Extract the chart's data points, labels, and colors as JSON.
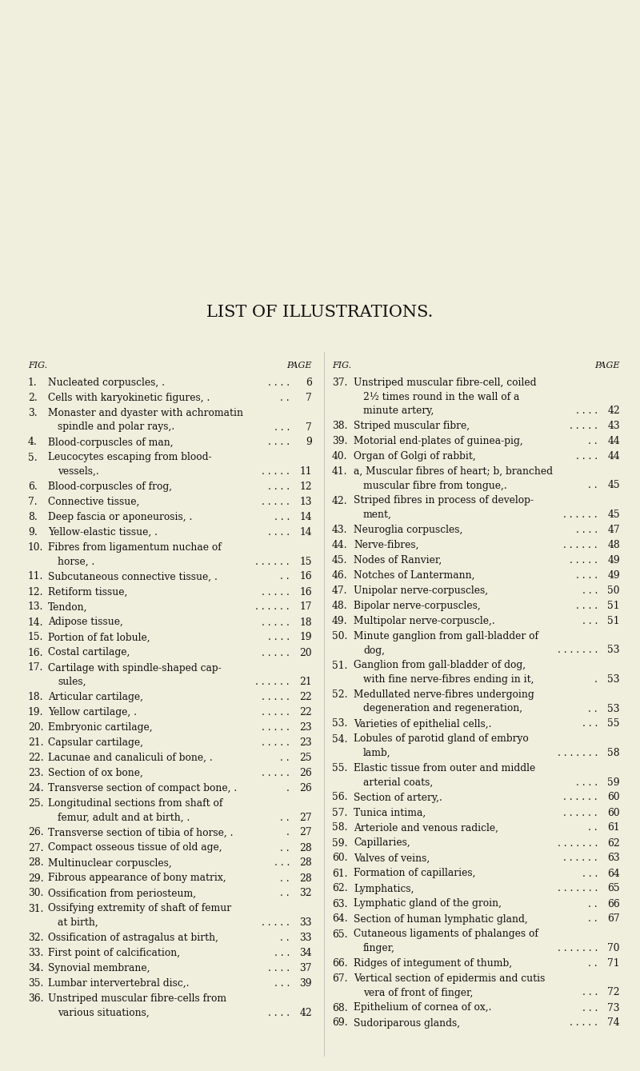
{
  "background_color": "#f0eedc",
  "title": "LIST OF ILLUSTRATIONS.",
  "title_fontsize": 15,
  "left_entries": [
    {
      "num": "1.",
      "text": "Nucleated corpuscles, .",
      "dots": ". . . .",
      "page": "6",
      "wrap": false
    },
    {
      "num": "2.",
      "text": "Cells with karyokinetic figures, .",
      "dots": ". .",
      "page": "7",
      "wrap": false
    },
    {
      "num": "3.",
      "text": "Monaster and dyaster with achromatin",
      "text2": "spindle and polar rays,.",
      "dots": ". . .",
      "page": "7",
      "wrap": true
    },
    {
      "num": "4.",
      "text": "Blood-corpuscles of man,",
      "dots": ". . . .",
      "page": "9",
      "wrap": false
    },
    {
      "num": "5.",
      "text": "Leucocytes escaping from blood-",
      "text2": "vessels,.",
      "dots": ". . . . .",
      "page": "11",
      "wrap": true
    },
    {
      "num": "6.",
      "text": "Blood-corpuscles of frog,",
      "dots": ". . . .",
      "page": "12",
      "wrap": false
    },
    {
      "num": "7.",
      "text": "Connective tissue,",
      "dots": ". . . . .",
      "page": "13",
      "wrap": false
    },
    {
      "num": "8.",
      "text": "Deep fascia or aponeurosis, .",
      "dots": ". . .",
      "page": "14",
      "wrap": false
    },
    {
      "num": "9.",
      "text": "Yellow-elastic tissue, .",
      "dots": ". . . .",
      "page": "14",
      "wrap": false
    },
    {
      "num": "10.",
      "text": "Fibres from ligamentum nuchae of",
      "text2": "horse, .",
      "dots": ". . . . . .",
      "page": "15",
      "wrap": true
    },
    {
      "num": "11.",
      "text": "Subcutaneous connective tissue, .",
      "dots": ". .",
      "page": "16",
      "wrap": false
    },
    {
      "num": "12.",
      "text": "Retiform tissue,",
      "dots": ". . . . .",
      "page": "16",
      "wrap": false
    },
    {
      "num": "13.",
      "text": "Tendon,",
      "dots": ". . . . . .",
      "page": "17",
      "wrap": false
    },
    {
      "num": "14.",
      "text": "Adipose tissue,",
      "dots": ". . . . .",
      "page": "18",
      "wrap": false
    },
    {
      "num": "15.",
      "text": "Portion of fat lobule,",
      "dots": ". . . .",
      "page": "19",
      "wrap": false
    },
    {
      "num": "16.",
      "text": "Costal cartilage,",
      "dots": ". . . . .",
      "page": "20",
      "wrap": false
    },
    {
      "num": "17.",
      "text": "Cartilage with spindle-shaped cap-",
      "text2": "sules,",
      "dots": ". . . . . .",
      "page": "21",
      "wrap": true
    },
    {
      "num": "18.",
      "text": "Articular cartilage,",
      "dots": ". . . . .",
      "page": "22",
      "wrap": false
    },
    {
      "num": "19.",
      "text": "Yellow cartilage, .",
      "dots": ". . . . .",
      "page": "22",
      "wrap": false
    },
    {
      "num": "20.",
      "text": "Embryonic cartilage,",
      "dots": ". . . . .",
      "page": "23",
      "wrap": false
    },
    {
      "num": "21.",
      "text": "Capsular cartilage,",
      "dots": ". . . . .",
      "page": "23",
      "wrap": false
    },
    {
      "num": "22.",
      "text": "Lacunae and canaliculi of bone, .",
      "dots": ". .",
      "page": "25",
      "wrap": false
    },
    {
      "num": "23.",
      "text": "Section of ox bone,",
      "dots": ". . . . .",
      "page": "26",
      "wrap": false
    },
    {
      "num": "24.",
      "text": "Transverse section of compact bone, .",
      "dots": ".",
      "page": "26",
      "wrap": false
    },
    {
      "num": "25.",
      "text": "Longitudinal sections from shaft of",
      "text2": "femur, adult and at birth, .",
      "dots": ". .",
      "page": "27",
      "wrap": true
    },
    {
      "num": "26.",
      "text": "Transverse section of tibia of horse, .",
      "dots": ".",
      "page": "27",
      "wrap": false
    },
    {
      "num": "27.",
      "text": "Compact osseous tissue of old age,",
      "dots": ". .",
      "page": "28",
      "wrap": false
    },
    {
      "num": "28.",
      "text": "Multinuclear corpuscles,",
      "dots": ". . .",
      "page": "28",
      "wrap": false
    },
    {
      "num": "29.",
      "text": "Fibrous appearance of bony matrix,",
      "dots": ". .",
      "page": "28",
      "wrap": false
    },
    {
      "num": "30.",
      "text": "Ossification from periosteum,",
      "dots": ". .",
      "page": "32",
      "wrap": false
    },
    {
      "num": "31.",
      "text": "Ossifying extremity of shaft of femur",
      "text2": "at birth,",
      "dots": ". . . . .",
      "page": "33",
      "wrap": true
    },
    {
      "num": "32.",
      "text": "Ossification of astragalus at birth,",
      "dots": ". .",
      "page": "33",
      "wrap": false
    },
    {
      "num": "33.",
      "text": "First point of calcification,",
      "dots": ". . .",
      "page": "34",
      "wrap": false
    },
    {
      "num": "34.",
      "text": "Synovial membrane,",
      "dots": ". . . .",
      "page": "37",
      "wrap": false
    },
    {
      "num": "35.",
      "text": "Lumbar intervertebral disc,.",
      "dots": ". . .",
      "page": "39",
      "wrap": false
    },
    {
      "num": "36.",
      "text": "Unstriped muscular fibre-cells from",
      "text2": "various situations,",
      "dots": ". . . .",
      "page": "42",
      "wrap": true
    }
  ],
  "right_entries": [
    {
      "num": "37.",
      "text": "Unstriped muscular fibre-cell, coiled",
      "text2": "2½ times round in the wall of a",
      "text3": "minute artery,",
      "dots": ". . . .",
      "page": "42",
      "wrap": true,
      "lines": 3
    },
    {
      "num": "38.",
      "text": "Striped muscular fibre,",
      "dots": ". . . . .",
      "page": "43",
      "wrap": false
    },
    {
      "num": "39.",
      "text": "Motorial end-plates of guinea-pig,",
      "dots": ". .",
      "page": "44",
      "wrap": false
    },
    {
      "num": "40.",
      "text": "Organ of Golgi of rabbit,",
      "dots": ". . . .",
      "page": "44",
      "wrap": false
    },
    {
      "num": "41.",
      "text": "a, Muscular fibres of heart; b, branched",
      "text2": "muscular fibre from tongue,.",
      "dots": ". .",
      "page": "45",
      "wrap": true
    },
    {
      "num": "42.",
      "text": "Striped fibres in process of develop-",
      "text2": "ment,",
      "dots": ". . . . . .",
      "page": "45",
      "wrap": true
    },
    {
      "num": "43.",
      "text": "Neuroglia corpuscles,",
      "dots": ". . . .",
      "page": "47",
      "wrap": false
    },
    {
      "num": "44.",
      "text": "Nerve-fibres,",
      "dots": ". . . . . .",
      "page": "48",
      "wrap": false
    },
    {
      "num": "45.",
      "text": "Nodes of Ranvier,",
      "dots": ". . . . .",
      "page": "49",
      "wrap": false
    },
    {
      "num": "46.",
      "text": "Notches of Lantermann,",
      "dots": ". . . .",
      "page": "49",
      "wrap": false
    },
    {
      "num": "47.",
      "text": "Unipolar nerve-corpuscles,",
      "dots": ". . .",
      "page": "50",
      "wrap": false
    },
    {
      "num": "48.",
      "text": "Bipolar nerve-corpuscles,",
      "dots": ". . . .",
      "page": "51",
      "wrap": false
    },
    {
      "num": "49.",
      "text": "Multipolar nerve-corpuscle,.",
      "dots": ". . .",
      "page": "51",
      "wrap": false
    },
    {
      "num": "50.",
      "text": "Minute ganglion from gall-bladder of",
      "text2": "dog,",
      "dots": ". . . . . . .",
      "page": "53",
      "wrap": true
    },
    {
      "num": "51.",
      "text": "Ganglion from gall-bladder of dog,",
      "text2": "with fine nerve-fibres ending in it,",
      "dots": ".",
      "page": "53",
      "wrap": true
    },
    {
      "num": "52.",
      "text": "Medullated nerve-fibres undergoing",
      "text2": "degeneration and regeneration,",
      "dots": ". .",
      "page": "53",
      "wrap": true
    },
    {
      "num": "53.",
      "text": "Varieties of epithelial cells,.",
      "dots": ". . .",
      "page": "55",
      "wrap": false
    },
    {
      "num": "54.",
      "text": "Lobules of parotid gland of embryo",
      "text2": "lamb,",
      "dots": ". . . . . . .",
      "page": "58",
      "wrap": true
    },
    {
      "num": "55.",
      "text": "Elastic tissue from outer and middle",
      "text2": "arterial coats,",
      "dots": ". . . .",
      "page": "59",
      "wrap": true
    },
    {
      "num": "56.",
      "text": "Section of artery,.",
      "dots": ". . . . . .",
      "page": "60",
      "wrap": false
    },
    {
      "num": "57.",
      "text": "Tunica intima,",
      "dots": ". . . . . .",
      "page": "60",
      "wrap": false
    },
    {
      "num": "58.",
      "text": "Arteriole and venous radicle,",
      "dots": ". .",
      "page": "61",
      "wrap": false
    },
    {
      "num": "59.",
      "text": "Capillaries,",
      "dots": ". . . . . . .",
      "page": "62",
      "wrap": false
    },
    {
      "num": "60.",
      "text": "Valves of veins,",
      "dots": ". . . . . .",
      "page": "63",
      "wrap": false
    },
    {
      "num": "61.",
      "text": "Formation of capillaries,",
      "dots": ". . .",
      "page": "64",
      "wrap": false
    },
    {
      "num": "62.",
      "text": "Lymphatics,",
      "dots": ". . . . . . .",
      "page": "65",
      "wrap": false
    },
    {
      "num": "63.",
      "text": "Lymphatic gland of the groin,",
      "dots": ". .",
      "page": "66",
      "wrap": false
    },
    {
      "num": "64.",
      "text": "Section of human lymphatic gland,",
      "dots": ". .",
      "page": "67",
      "wrap": false
    },
    {
      "num": "65.",
      "text": "Cutaneous ligaments of phalanges of",
      "text2": "finger,",
      "dots": ". . . . . . .",
      "page": "70",
      "wrap": true
    },
    {
      "num": "66.",
      "text": "Ridges of integument of thumb,",
      "dots": ". .",
      "page": "71",
      "wrap": false
    },
    {
      "num": "67.",
      "text": "Vertical section of epidermis and cutis",
      "text2": "vera of front of finger,",
      "dots": ". . .",
      "page": "72",
      "wrap": true
    },
    {
      "num": "68.",
      "text": "Epithelium of cornea of ox,.",
      "dots": ". . .",
      "page": "73",
      "wrap": false
    },
    {
      "num": "69.",
      "text": "Sudoriparous glands,",
      "dots": ". . . . .",
      "page": "74",
      "wrap": false
    }
  ],
  "text_color": "#111111",
  "font_size": 8.8,
  "header_font_size": 8.0
}
